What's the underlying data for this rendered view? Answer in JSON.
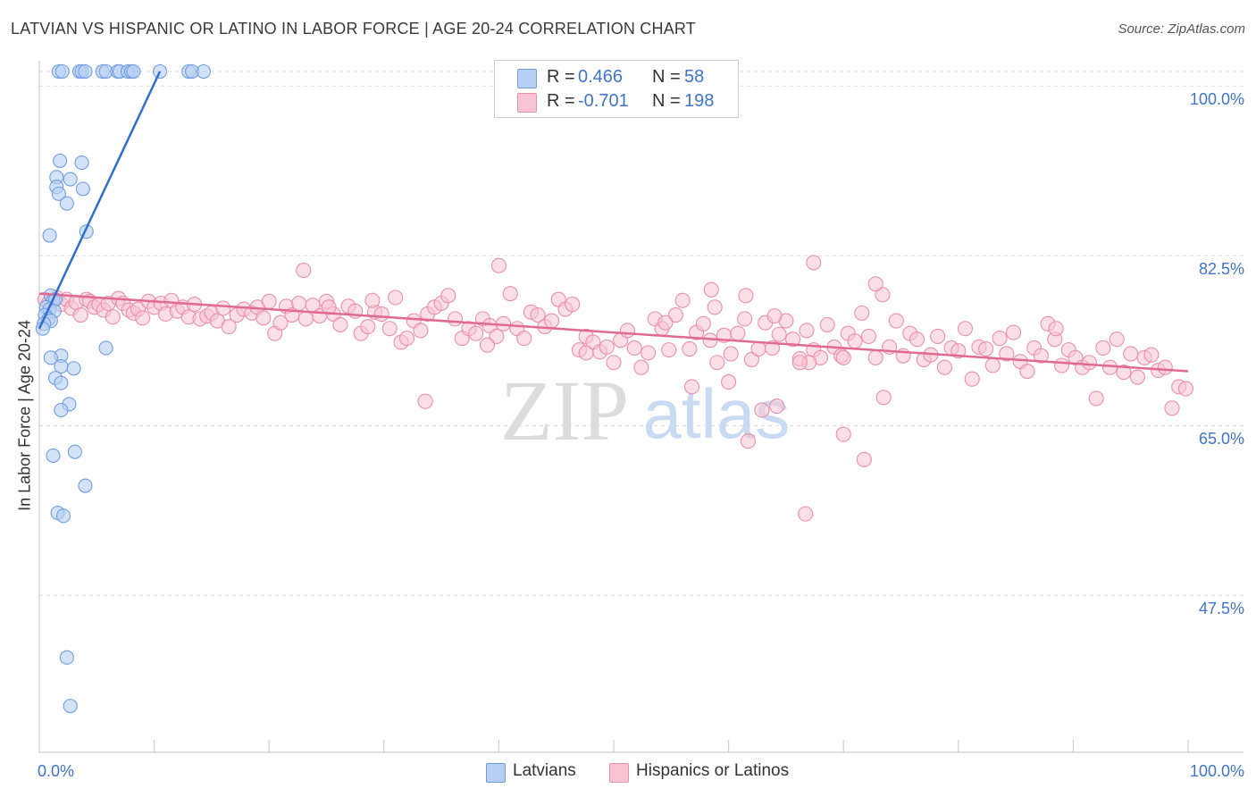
{
  "header": {
    "title": "LATVIAN VS HISPANIC OR LATINO IN LABOR FORCE | AGE 20-24 CORRELATION CHART",
    "source": "Source: ZipAtlas.com"
  },
  "watermark": {
    "zip": "ZIP",
    "atlas": "atlas"
  },
  "colors": {
    "blue_fill": "#b7cff3",
    "blue_stroke": "#6f9ee0",
    "blue_line": "#2f6ecf",
    "pink_fill": "#f8c4d3",
    "pink_stroke": "#ea8fac",
    "pink_line": "#e16a93",
    "tick_text": "#3e74c9",
    "grid": "#dcdcdc"
  },
  "stats": {
    "r_label": "R =",
    "n_label": "N =",
    "latvians": {
      "r": "0.466",
      "n": "58"
    },
    "hispanics": {
      "r": "-0.701",
      "n": "198"
    }
  },
  "legend": {
    "latvians": "Latvians",
    "hispanics": "Hispanics or Latinos"
  },
  "chart_data": {
    "type": "scatter",
    "title": "LATVIAN VS HISPANIC OR LATINO IN LABOR FORCE | AGE 20-24 CORRELATION CHART",
    "xlabel": "",
    "ylabel": "In Labor Force | Age 20-24",
    "xlim": [
      0,
      100
    ],
    "ylim": [
      31.0,
      101.5
    ],
    "x_tick_labels": [
      "0.0%",
      "100.0%"
    ],
    "y_ticks": [
      100.0,
      82.5,
      65.0,
      47.5
    ],
    "y_tick_labels": [
      "100.0%",
      "82.5%",
      "65.0%",
      "47.5%"
    ],
    "grid": true,
    "legend_position": "bottom",
    "series": [
      {
        "name": "Latvians",
        "r": 0.466,
        "n": 58,
        "trend": {
          "x": [
            0.0,
            10.5
          ],
          "y": [
            75.0,
            101.5
          ]
        },
        "points": [
          [
            1.7,
            101.5
          ],
          [
            2.0,
            101.5
          ],
          [
            3.5,
            101.5
          ],
          [
            3.7,
            101.5
          ],
          [
            4.0,
            101.5
          ],
          [
            5.5,
            101.5
          ],
          [
            5.8,
            101.5
          ],
          [
            6.8,
            101.5
          ],
          [
            7.0,
            101.5
          ],
          [
            7.7,
            101.5
          ],
          [
            8.0,
            101.5
          ],
          [
            8.2,
            101.5
          ],
          [
            10.5,
            101.5
          ],
          [
            13.0,
            101.5
          ],
          [
            13.3,
            101.5
          ],
          [
            14.3,
            101.5
          ],
          [
            1.8,
            92.3
          ],
          [
            3.7,
            92.1
          ],
          [
            1.5,
            90.6
          ],
          [
            2.7,
            90.4
          ],
          [
            1.5,
            89.6
          ],
          [
            3.8,
            89.4
          ],
          [
            1.7,
            88.9
          ],
          [
            2.4,
            87.9
          ],
          [
            0.9,
            84.6
          ],
          [
            4.1,
            85.0
          ],
          [
            1.0,
            78.4
          ],
          [
            1.2,
            77.9
          ],
          [
            1.4,
            78.0
          ],
          [
            0.6,
            77.2
          ],
          [
            0.9,
            77.0
          ],
          [
            1.3,
            76.8
          ],
          [
            0.5,
            76.4
          ],
          [
            0.8,
            76.0
          ],
          [
            1.0,
            75.8
          ],
          [
            0.4,
            75.5
          ],
          [
            0.3,
            75.0
          ],
          [
            5.8,
            73.0
          ],
          [
            1.9,
            72.2
          ],
          [
            1.0,
            72.0
          ],
          [
            3.0,
            70.9
          ],
          [
            1.9,
            71.1
          ],
          [
            1.4,
            69.9
          ],
          [
            1.9,
            69.4
          ],
          [
            2.6,
            67.2
          ],
          [
            1.9,
            66.6
          ],
          [
            1.2,
            61.9
          ],
          [
            3.1,
            62.3
          ],
          [
            4.0,
            58.8
          ],
          [
            1.6,
            56.0
          ],
          [
            2.1,
            55.7
          ],
          [
            2.4,
            41.1
          ],
          [
            2.7,
            36.1
          ]
        ]
      },
      {
        "name": "Hispanics or Latinos",
        "r": -0.701,
        "n": 198,
        "trend": {
          "x": [
            0.0,
            100.0
          ],
          "y": [
            78.6,
            70.6
          ]
        },
        "points": [
          [
            0.5,
            78.0
          ],
          [
            0.8,
            77.6
          ],
          [
            1.5,
            78.2
          ],
          [
            1.9,
            77.5
          ],
          [
            2.4,
            78.0
          ],
          [
            2.8,
            77.1
          ],
          [
            3.2,
            77.7
          ],
          [
            3.6,
            76.4
          ],
          [
            4.1,
            78.0
          ],
          [
            4.4,
            77.8
          ],
          [
            4.8,
            77.2
          ],
          [
            5.2,
            77.5
          ],
          [
            5.6,
            76.9
          ],
          [
            6.0,
            77.6
          ],
          [
            6.4,
            76.2
          ],
          [
            6.9,
            78.1
          ],
          [
            7.3,
            77.6
          ],
          [
            7.8,
            76.9
          ],
          [
            8.2,
            76.6
          ],
          [
            8.6,
            77.0
          ],
          [
            9.0,
            76.1
          ],
          [
            9.5,
            77.8
          ],
          [
            10.0,
            77.2
          ],
          [
            10.6,
            77.6
          ],
          [
            11.0,
            76.5
          ],
          [
            11.5,
            77.9
          ],
          [
            12.0,
            76.8
          ],
          [
            12.5,
            77.2
          ],
          [
            13.0,
            76.2
          ],
          [
            13.5,
            77.5
          ],
          [
            14.0,
            76.0
          ],
          [
            14.6,
            76.3
          ],
          [
            15.0,
            76.6
          ],
          [
            15.5,
            75.8
          ],
          [
            16.0,
            77.1
          ],
          [
            16.5,
            75.2
          ],
          [
            17.2,
            76.4
          ],
          [
            17.8,
            77.0
          ],
          [
            18.5,
            76.6
          ],
          [
            19.0,
            77.2
          ],
          [
            19.5,
            76.1
          ],
          [
            20.0,
            77.8
          ],
          [
            20.5,
            74.5
          ],
          [
            21.0,
            75.6
          ],
          [
            21.5,
            77.3
          ],
          [
            22.0,
            76.4
          ],
          [
            22.6,
            77.6
          ],
          [
            23.2,
            76.0
          ],
          [
            23.8,
            77.4
          ],
          [
            24.4,
            76.3
          ],
          [
            25.0,
            77.8
          ],
          [
            25.6,
            76.5
          ],
          [
            26.2,
            75.4
          ],
          [
            26.9,
            77.3
          ],
          [
            27.5,
            76.8
          ],
          [
            28.0,
            74.5
          ],
          [
            28.6,
            75.2
          ],
          [
            29.2,
            76.7
          ],
          [
            29.8,
            76.5
          ],
          [
            30.5,
            75.0
          ],
          [
            31.0,
            78.2
          ],
          [
            31.5,
            73.6
          ],
          [
            32.0,
            74.0
          ],
          [
            32.6,
            75.8
          ],
          [
            33.2,
            74.8
          ],
          [
            33.8,
            76.5
          ],
          [
            34.4,
            77.2
          ],
          [
            35.0,
            77.6
          ],
          [
            35.6,
            78.4
          ],
          [
            36.2,
            76.0
          ],
          [
            36.8,
            74.0
          ],
          [
            37.4,
            75.0
          ],
          [
            38.0,
            74.5
          ],
          [
            38.6,
            76.0
          ],
          [
            39.2,
            75.3
          ],
          [
            39.8,
            74.2
          ],
          [
            40.4,
            75.5
          ],
          [
            41.0,
            78.6
          ],
          [
            41.6,
            75.0
          ],
          [
            42.2,
            74.0
          ],
          [
            42.8,
            76.7
          ],
          [
            43.4,
            76.4
          ],
          [
            44.0,
            75.2
          ],
          [
            44.6,
            75.8
          ],
          [
            45.2,
            78.0
          ],
          [
            45.8,
            77.0
          ],
          [
            46.4,
            77.5
          ],
          [
            47.0,
            72.8
          ],
          [
            47.6,
            74.2
          ],
          [
            48.2,
            73.6
          ],
          [
            48.8,
            72.6
          ],
          [
            49.4,
            73.1
          ],
          [
            50.0,
            71.5
          ],
          [
            50.6,
            73.8
          ],
          [
            51.2,
            74.8
          ],
          [
            51.8,
            73.0
          ],
          [
            52.4,
            71.0
          ],
          [
            53.0,
            72.5
          ],
          [
            53.6,
            76.0
          ],
          [
            54.2,
            75.0
          ],
          [
            54.8,
            72.8
          ],
          [
            55.4,
            76.4
          ],
          [
            56.0,
            77.9
          ],
          [
            56.6,
            72.9
          ],
          [
            57.2,
            74.6
          ],
          [
            57.8,
            75.5
          ],
          [
            58.4,
            73.8
          ],
          [
            59.0,
            71.5
          ],
          [
            59.6,
            74.3
          ],
          [
            60.2,
            72.4
          ],
          [
            60.8,
            74.5
          ],
          [
            61.4,
            76.0
          ],
          [
            62.0,
            71.8
          ],
          [
            62.6,
            72.9
          ],
          [
            63.2,
            75.6
          ],
          [
            63.8,
            73.0
          ],
          [
            64.4,
            74.4
          ],
          [
            65.0,
            75.8
          ],
          [
            65.6,
            73.9
          ],
          [
            66.2,
            71.9
          ],
          [
            66.8,
            74.8
          ],
          [
            67.4,
            72.8
          ],
          [
            68.0,
            72.0
          ],
          [
            68.6,
            75.4
          ],
          [
            69.2,
            73.1
          ],
          [
            69.8,
            72.2
          ],
          [
            70.4,
            74.5
          ],
          [
            71.0,
            73.7
          ],
          [
            71.6,
            76.6
          ],
          [
            72.2,
            74.2
          ],
          [
            72.8,
            72.0
          ],
          [
            73.4,
            78.5
          ],
          [
            74.0,
            73.1
          ],
          [
            74.6,
            75.8
          ],
          [
            75.2,
            72.2
          ],
          [
            75.8,
            74.5
          ],
          [
            76.4,
            73.9
          ],
          [
            77.0,
            71.8
          ],
          [
            77.6,
            72.3
          ],
          [
            78.2,
            74.2
          ],
          [
            78.8,
            71.0
          ],
          [
            79.4,
            73.0
          ],
          [
            80.0,
            72.7
          ],
          [
            80.6,
            75.0
          ],
          [
            81.2,
            69.8
          ],
          [
            81.8,
            73.1
          ],
          [
            82.4,
            72.9
          ],
          [
            83.0,
            71.2
          ],
          [
            83.6,
            74.0
          ],
          [
            84.2,
            72.4
          ],
          [
            84.8,
            74.6
          ],
          [
            85.4,
            71.6
          ],
          [
            86.0,
            70.6
          ],
          [
            86.6,
            73.0
          ],
          [
            87.2,
            72.2
          ],
          [
            87.8,
            75.5
          ],
          [
            88.4,
            73.9
          ],
          [
            89.0,
            71.2
          ],
          [
            89.6,
            72.8
          ],
          [
            90.2,
            72.0
          ],
          [
            90.8,
            71.0
          ],
          [
            91.4,
            71.5
          ],
          [
            92.0,
            67.8
          ],
          [
            92.6,
            73.0
          ],
          [
            93.2,
            71.0
          ],
          [
            93.8,
            73.9
          ],
          [
            94.4,
            70.5
          ],
          [
            95.0,
            72.4
          ],
          [
            95.6,
            70.0
          ],
          [
            96.2,
            72.0
          ],
          [
            96.8,
            72.3
          ],
          [
            97.4,
            70.7
          ],
          [
            98.0,
            71.0
          ],
          [
            98.6,
            66.8
          ],
          [
            99.2,
            69.0
          ],
          [
            99.8,
            68.8
          ],
          [
            40.0,
            81.5
          ],
          [
            67.4,
            81.8
          ],
          [
            58.5,
            79.0
          ],
          [
            64.0,
            76.3
          ],
          [
            72.8,
            79.6
          ],
          [
            23.0,
            81.0
          ],
          [
            29.0,
            77.9
          ],
          [
            54.5,
            75.6
          ],
          [
            61.5,
            78.4
          ],
          [
            88.5,
            75.0
          ],
          [
            39.0,
            73.3
          ],
          [
            58.8,
            77.2
          ],
          [
            67.0,
            71.5
          ],
          [
            70.0,
            72.0
          ],
          [
            25.2,
            77.2
          ],
          [
            73.5,
            67.9
          ],
          [
            56.8,
            69.0
          ],
          [
            61.7,
            63.4
          ],
          [
            60.0,
            69.5
          ],
          [
            64.2,
            67.0
          ],
          [
            62.9,
            66.6
          ],
          [
            66.2,
            71.5
          ],
          [
            70.0,
            64.1
          ],
          [
            71.8,
            61.5
          ],
          [
            66.7,
            55.9
          ],
          [
            47.6,
            72.5
          ],
          [
            33.6,
            67.5
          ]
        ]
      }
    ]
  }
}
